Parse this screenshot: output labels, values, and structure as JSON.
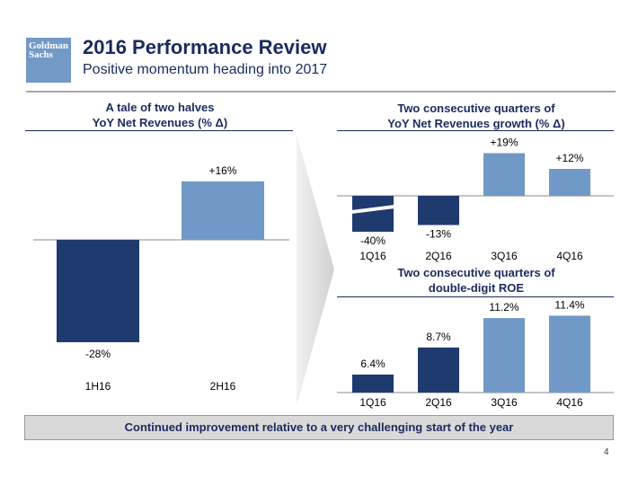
{
  "header": {
    "logo_text": "Goldman Sachs",
    "title": "2016 Performance Review",
    "subtitle": "Positive momentum heading into 2017"
  },
  "colors": {
    "navy": "#1f3a6e",
    "light_blue": "#7099c8",
    "title": "#1b2a5e"
  },
  "chart_data": [
    {
      "type": "bar",
      "title": "A tale of two halves",
      "subtitle": "YoY Net Revenues (% Δ)",
      "categories": [
        "1H16",
        "2H16"
      ],
      "values": [
        -28,
        16
      ],
      "labels": [
        "-28%",
        "+16%"
      ]
    },
    {
      "type": "bar",
      "title": "Two consecutive quarters of",
      "subtitle": "YoY Net Revenues growth (% Δ)",
      "categories": [
        "1Q16",
        "2Q16",
        "3Q16",
        "4Q16"
      ],
      "values": [
        -40,
        -13,
        19,
        12
      ],
      "labels": [
        "-40%",
        "-13%",
        "+19%",
        "+12%"
      ],
      "note": "1Q16 bar shown with axis break"
    },
    {
      "type": "bar",
      "title": "Two consecutive quarters of",
      "subtitle": "double-digit ROE",
      "categories": [
        "1Q16",
        "2Q16",
        "3Q16",
        "4Q16"
      ],
      "values": [
        6.4,
        8.7,
        11.2,
        11.4
      ],
      "labels": [
        "6.4%",
        "8.7%",
        "11.2%",
        "11.4%"
      ]
    }
  ],
  "footer": {
    "banner": "Continued improvement relative to a very challenging start of the year",
    "page": "4"
  }
}
